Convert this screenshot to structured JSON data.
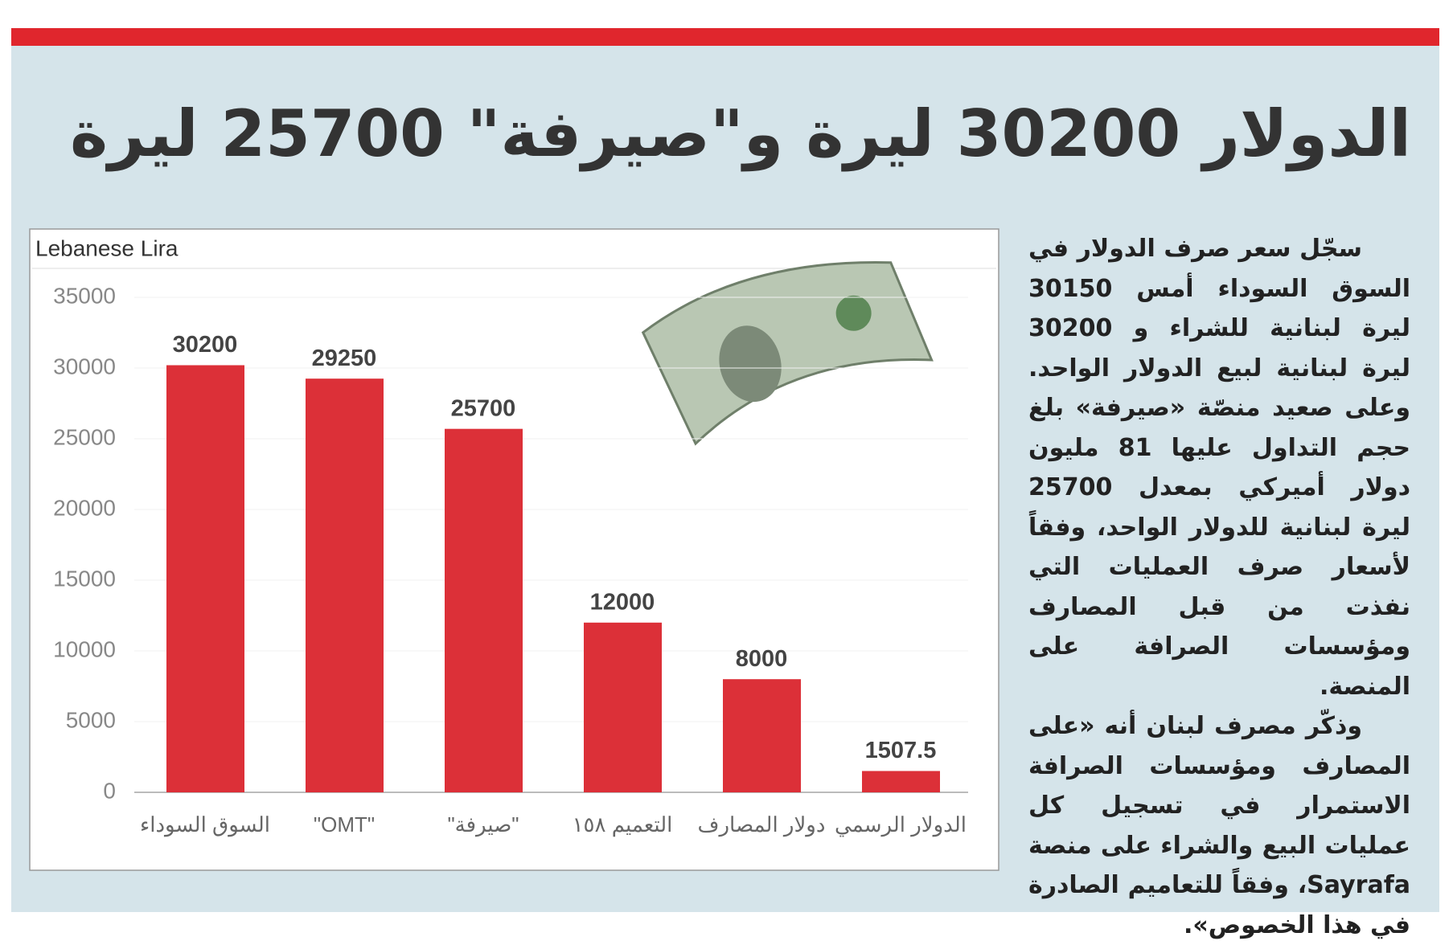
{
  "title": "الدولار 30200 ليرة و\"صيرفة\" 25700 ليرة",
  "article": {
    "paragraphs": [
      "سجّل سعر صرف الدولار في السوق السوداء أمس 30150 ليرة لبنانية للشراء و 30200 ليرة لبنانية لبيع الدولار الواحد. وعلى صعيد منصّة «صيرفة» بلغ حجم التداول عليها 81 مليون دولار أميركي بمعدل 25700 ليرة لبنانية للدولار الواحد، وفقاً لأسعار صرف العمليات التي نفذت من قبل المصارف ومؤسسات الصرافة على المنصة.",
      "وذكّر مصرف لبنان أنه «على المصارف ومؤسسات الصرافة الاستمرار في تسجيل كل عمليات البيع والشراء على منصة Sayrafa، وفقاً للتعاميم الصادرة في هذا الخصوص»."
    ]
  },
  "chart_data": {
    "type": "bar",
    "y_label": "Lebanese Lira",
    "categories": [
      "السوق السوداء",
      "\"OMT\"",
      "\"صيرفة\"",
      "التعميم ١٥٨",
      "دولار المصارف",
      "الدولار الرسمي"
    ],
    "values": [
      30200,
      29250,
      25700,
      12000,
      8000,
      1507.5
    ],
    "color": "#dc3038",
    "ylim": [
      0,
      35000
    ],
    "yticks": [
      0,
      5000,
      10000,
      15000,
      20000,
      25000,
      30000,
      35000
    ],
    "grid": true
  }
}
